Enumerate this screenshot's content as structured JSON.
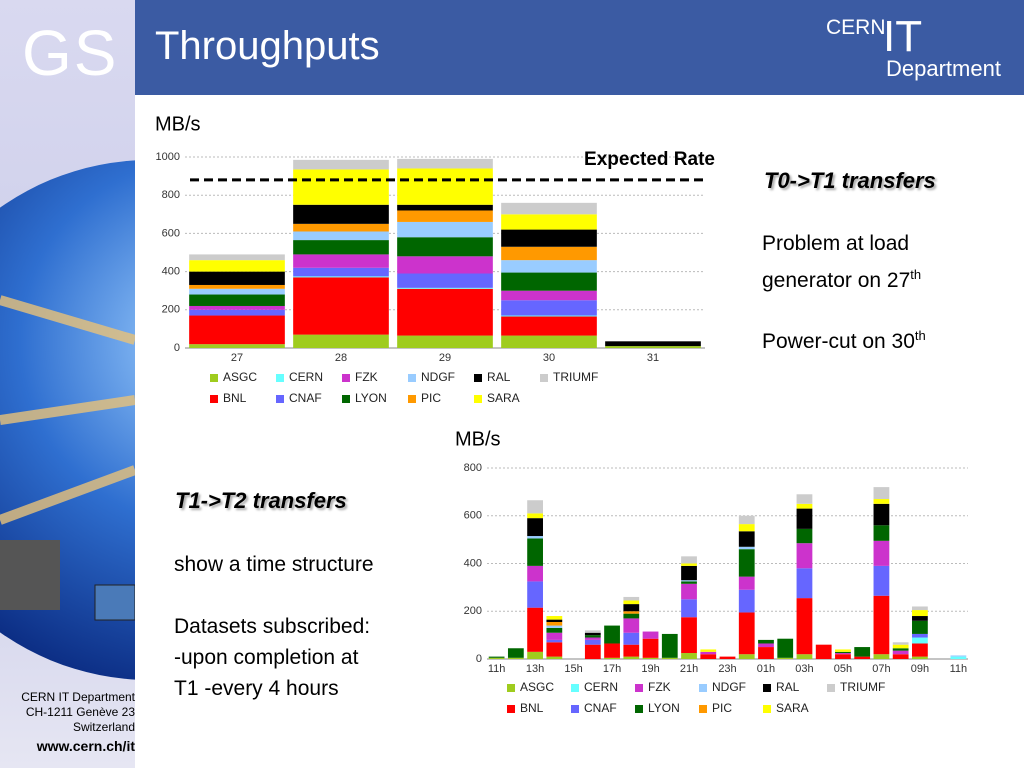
{
  "header": {
    "logo": "GS",
    "title": "Throughputs",
    "brand": {
      "line1": "CERN",
      "line2": "IT",
      "line3": "Department"
    }
  },
  "t0t1": {
    "heading": "T0->T1 transfers",
    "notes": [
      {
        "text": "Problem at load generator on 27",
        "sup": "th"
      },
      {
        "text": "Power-cut on 30",
        "sup": "th"
      }
    ]
  },
  "t1t2": {
    "heading": "T1->T2 transfers",
    "notes": [
      "show a time structure",
      "Datasets subscribed:",
      "-upon completion at",
      "T1 -every 4 hours"
    ]
  },
  "footer": {
    "lines": [
      "CERN IT Department",
      "CH-1211 Genève 23",
      "Switzerland",
      "www.cern.ch/it"
    ]
  },
  "chart_data": [
    {
      "type": "stacked_bar",
      "y_label": "MB/s",
      "categories": [
        "27",
        "28",
        "29",
        "30",
        "31"
      ],
      "ylim": [
        0,
        1000
      ],
      "yticks": [
        0,
        200,
        400,
        600,
        800,
        1000
      ],
      "grid": true,
      "annotation": {
        "text": "Expected Rate",
        "value": 880
      },
      "series": [
        {
          "name": "ASGC",
          "color": "#9fcc1e",
          "values": [
            20,
            70,
            65,
            65,
            10
          ]
        },
        {
          "name": "BNL",
          "color": "#ff0000",
          "values": [
            150,
            300,
            245,
            100,
            0
          ]
        },
        {
          "name": "CERN",
          "color": "#66ffff",
          "values": [
            0,
            5,
            5,
            5,
            0
          ]
        },
        {
          "name": "CNAF",
          "color": "#6666ff",
          "values": [
            30,
            45,
            75,
            80,
            0
          ]
        },
        {
          "name": "FZK",
          "color": "#cc33cc",
          "values": [
            20,
            70,
            90,
            50,
            0
          ]
        },
        {
          "name": "LYON",
          "color": "#006600",
          "values": [
            60,
            75,
            100,
            95,
            0
          ]
        },
        {
          "name": "NDGF",
          "color": "#99ccff",
          "values": [
            30,
            45,
            80,
            65,
            0
          ]
        },
        {
          "name": "PIC",
          "color": "#ff9900",
          "values": [
            20,
            40,
            60,
            70,
            0
          ]
        },
        {
          "name": "RAL",
          "color": "#000000",
          "values": [
            70,
            100,
            30,
            90,
            25
          ]
        },
        {
          "name": "SARA",
          "color": "#ffff00",
          "values": [
            60,
            185,
            190,
            80,
            0
          ]
        },
        {
          "name": "TRIUMF",
          "color": "#cccccc",
          "values": [
            30,
            50,
            50,
            60,
            0
          ]
        }
      ]
    },
    {
      "type": "stacked_bar",
      "y_label": "MB/s",
      "categories": [
        "11h",
        null,
        "13h",
        null,
        "15h",
        null,
        "17h",
        null,
        "19h",
        null,
        "21h",
        null,
        "23h",
        null,
        "01h",
        null,
        "03h",
        null,
        "05h",
        null,
        "07h",
        null,
        "09h",
        null,
        "11h"
      ],
      "ylim": [
        0,
        800
      ],
      "yticks": [
        0,
        200,
        400,
        600,
        800
      ],
      "grid": true,
      "series": [
        {
          "name": "ASGC",
          "color": "#9fcc1e",
          "values": [
            5,
            5,
            30,
            10,
            0,
            0,
            5,
            10,
            5,
            5,
            25,
            0,
            0,
            20,
            0,
            5,
            20,
            0,
            0,
            0,
            20,
            0,
            10,
            0,
            0
          ]
        },
        {
          "name": "BNL",
          "color": "#ff0000",
          "values": [
            0,
            0,
            185,
            60,
            0,
            60,
            60,
            50,
            80,
            0,
            150,
            20,
            10,
            175,
            50,
            0,
            235,
            60,
            20,
            10,
            245,
            20,
            55,
            0,
            0
          ]
        },
        {
          "name": "CERN",
          "color": "#66ffff",
          "values": [
            0,
            0,
            0,
            0,
            0,
            0,
            0,
            0,
            0,
            0,
            0,
            0,
            0,
            0,
            0,
            0,
            0,
            0,
            0,
            0,
            0,
            0,
            25,
            0,
            10
          ]
        },
        {
          "name": "CNAF",
          "color": "#6666ff",
          "values": [
            0,
            0,
            110,
            10,
            0,
            20,
            0,
            50,
            0,
            0,
            75,
            0,
            0,
            95,
            0,
            0,
            125,
            0,
            0,
            0,
            125,
            0,
            15,
            0,
            0
          ]
        },
        {
          "name": "FZK",
          "color": "#cc33cc",
          "values": [
            0,
            0,
            65,
            30,
            0,
            10,
            0,
            60,
            30,
            0,
            65,
            10,
            0,
            55,
            15,
            0,
            105,
            0,
            5,
            0,
            105,
            15,
            0,
            0,
            0
          ]
        },
        {
          "name": "LYON",
          "color": "#006600",
          "values": [
            5,
            40,
            115,
            20,
            0,
            10,
            75,
            20,
            0,
            100,
            10,
            0,
            0,
            115,
            15,
            80,
            60,
            0,
            5,
            40,
            65,
            10,
            55,
            0,
            0
          ]
        },
        {
          "name": "NDGF",
          "color": "#99ccff",
          "values": [
            0,
            0,
            10,
            10,
            0,
            0,
            0,
            0,
            0,
            0,
            5,
            0,
            0,
            10,
            0,
            0,
            0,
            0,
            0,
            0,
            0,
            0,
            0,
            0,
            5
          ]
        },
        {
          "name": "PIC",
          "color": "#ff9900",
          "values": [
            0,
            0,
            0,
            15,
            0,
            0,
            0,
            10,
            0,
            0,
            0,
            0,
            0,
            0,
            0,
            0,
            0,
            0,
            0,
            0,
            0,
            0,
            0,
            0,
            0
          ]
        },
        {
          "name": "RAL",
          "color": "#000000",
          "values": [
            0,
            0,
            75,
            10,
            0,
            10,
            0,
            30,
            0,
            0,
            60,
            0,
            0,
            65,
            0,
            0,
            85,
            0,
            0,
            0,
            90,
            0,
            20,
            0,
            0
          ]
        },
        {
          "name": "SARA",
          "color": "#ffff00",
          "values": [
            0,
            0,
            20,
            15,
            0,
            0,
            0,
            15,
            0,
            0,
            10,
            10,
            0,
            30,
            0,
            0,
            20,
            0,
            10,
            0,
            20,
            15,
            25,
            0,
            0
          ]
        },
        {
          "name": "TRIUMF",
          "color": "#cccccc",
          "values": [
            0,
            0,
            55,
            0,
            0,
            10,
            0,
            15,
            0,
            0,
            30,
            0,
            0,
            35,
            0,
            0,
            40,
            0,
            0,
            0,
            50,
            10,
            15,
            0,
            0
          ]
        }
      ]
    }
  ]
}
